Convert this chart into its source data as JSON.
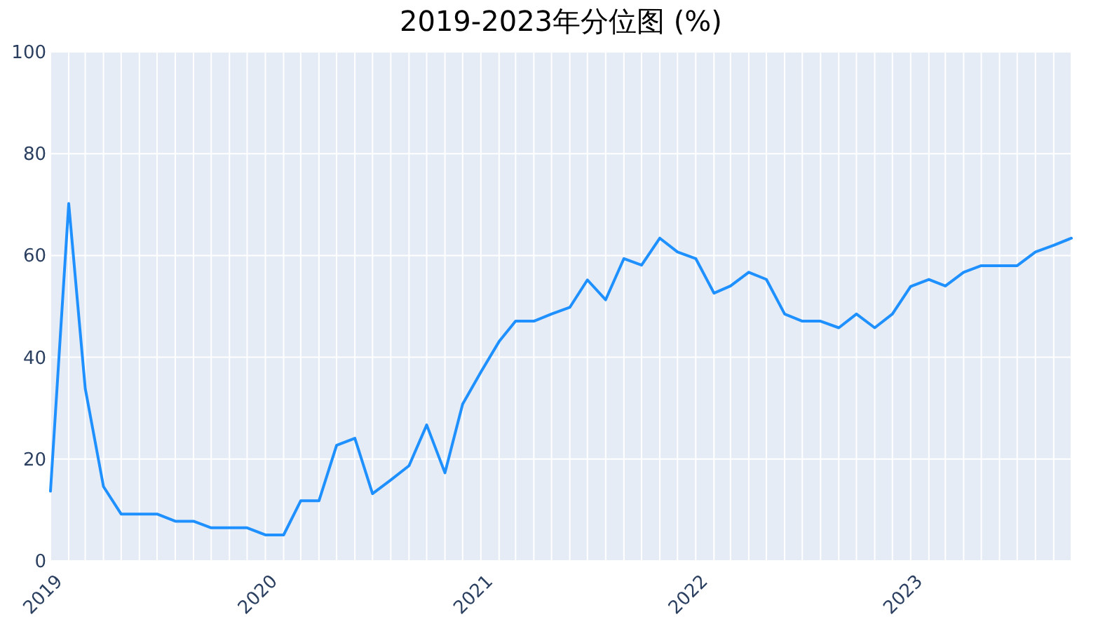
{
  "chart_data": {
    "type": "line",
    "title": "2019-2023年分位图 (%)",
    "x": [
      "2019-01",
      "2019-02",
      "2019-03",
      "2019-04",
      "2019-05",
      "2019-06",
      "2019-07",
      "2019-08",
      "2019-09",
      "2019-10",
      "2019-11",
      "2019-12",
      "2020-01",
      "2020-02",
      "2020-03",
      "2020-04",
      "2020-05",
      "2020-06",
      "2020-07",
      "2020-08",
      "2020-09",
      "2020-10",
      "2020-11",
      "2020-12",
      "2021-01",
      "2021-02",
      "2021-03",
      "2021-04",
      "2021-05",
      "2021-06",
      "2021-07",
      "2021-08",
      "2021-09",
      "2021-10",
      "2021-11",
      "2021-12",
      "2022-01",
      "2022-02",
      "2022-03",
      "2022-04",
      "2022-05",
      "2022-06",
      "2022-07",
      "2022-08",
      "2022-09",
      "2022-10",
      "2022-11",
      "2022-12",
      "2023-01",
      "2023-02",
      "2023-03",
      "2023-04",
      "2023-05",
      "2023-06",
      "2023-07",
      "2023-08",
      "2023-09",
      "2023-10"
    ],
    "series": [
      {
        "color": "#1e90ff",
        "values": [
          13.7,
          70.2,
          33.9,
          14.6,
          9.2,
          9.2,
          9.2,
          7.8,
          7.8,
          6.5,
          6.5,
          6.5,
          5.1,
          5.1,
          11.8,
          11.8,
          22.7,
          24.1,
          13.2,
          15.9,
          18.7,
          26.7,
          17.3,
          30.8,
          37.1,
          43.1,
          47.1,
          47.1,
          48.5,
          49.8,
          55.2,
          51.3,
          59.4,
          58.1,
          63.4,
          60.7,
          59.4,
          52.6,
          54.0,
          56.7,
          55.3,
          48.5,
          47.1,
          47.1,
          45.8,
          48.5,
          45.8,
          48.5,
          53.9,
          55.3,
          54.0,
          56.7,
          58.0,
          58.0,
          58.0,
          60.7,
          62.0,
          63.4
        ]
      }
    ],
    "xlim": [
      "2019-01",
      "2023-10"
    ],
    "xticks": [
      {
        "value": "2019-01",
        "label": "2019"
      },
      {
        "value": "2019-02",
        "label": null
      },
      {
        "value": "2019-03",
        "label": null
      },
      {
        "value": "2019-04",
        "label": null
      },
      {
        "value": "2019-05",
        "label": null
      },
      {
        "value": "2019-06",
        "label": null
      },
      {
        "value": "2019-07",
        "label": null
      },
      {
        "value": "2019-08",
        "label": null
      },
      {
        "value": "2019-09",
        "label": null
      },
      {
        "value": "2019-10",
        "label": null
      },
      {
        "value": "2019-11",
        "label": null
      },
      {
        "value": "2019-12",
        "label": null
      },
      {
        "value": "2020-01",
        "label": "2020"
      },
      {
        "value": "2020-02",
        "label": null
      },
      {
        "value": "2020-03",
        "label": null
      },
      {
        "value": "2020-04",
        "label": null
      },
      {
        "value": "2020-05",
        "label": null
      },
      {
        "value": "2020-06",
        "label": null
      },
      {
        "value": "2020-07",
        "label": null
      },
      {
        "value": "2020-08",
        "label": null
      },
      {
        "value": "2020-09",
        "label": null
      },
      {
        "value": "2020-10",
        "label": null
      },
      {
        "value": "2020-11",
        "label": null
      },
      {
        "value": "2020-12",
        "label": null
      },
      {
        "value": "2021-01",
        "label": "2021"
      },
      {
        "value": "2021-02",
        "label": null
      },
      {
        "value": "2021-03",
        "label": null
      },
      {
        "value": "2021-04",
        "label": null
      },
      {
        "value": "2021-05",
        "label": null
      },
      {
        "value": "2021-06",
        "label": null
      },
      {
        "value": "2021-07",
        "label": null
      },
      {
        "value": "2021-08",
        "label": null
      },
      {
        "value": "2021-09",
        "label": null
      },
      {
        "value": "2021-10",
        "label": null
      },
      {
        "value": "2021-11",
        "label": null
      },
      {
        "value": "2021-12",
        "label": null
      },
      {
        "value": "2022-01",
        "label": "2022"
      },
      {
        "value": "2022-02",
        "label": null
      },
      {
        "value": "2022-03",
        "label": null
      },
      {
        "value": "2022-04",
        "label": null
      },
      {
        "value": "2022-05",
        "label": null
      },
      {
        "value": "2022-06",
        "label": null
      },
      {
        "value": "2022-07",
        "label": null
      },
      {
        "value": "2022-08",
        "label": null
      },
      {
        "value": "2022-09",
        "label": null
      },
      {
        "value": "2022-10",
        "label": null
      },
      {
        "value": "2022-11",
        "label": null
      },
      {
        "value": "2022-12",
        "label": null
      },
      {
        "value": "2023-01",
        "label": "2023"
      },
      {
        "value": "2023-02",
        "label": null
      },
      {
        "value": "2023-03",
        "label": null
      },
      {
        "value": "2023-04",
        "label": null
      },
      {
        "value": "2023-05",
        "label": null
      },
      {
        "value": "2023-06",
        "label": null
      },
      {
        "value": "2023-07",
        "label": null
      },
      {
        "value": "2023-08",
        "label": null
      },
      {
        "value": "2023-09",
        "label": null
      },
      {
        "value": "2023-10",
        "label": null
      }
    ],
    "ylim": [
      0,
      100
    ],
    "yticks": [
      0,
      20,
      40,
      60,
      80,
      100
    ],
    "grid": true
  }
}
